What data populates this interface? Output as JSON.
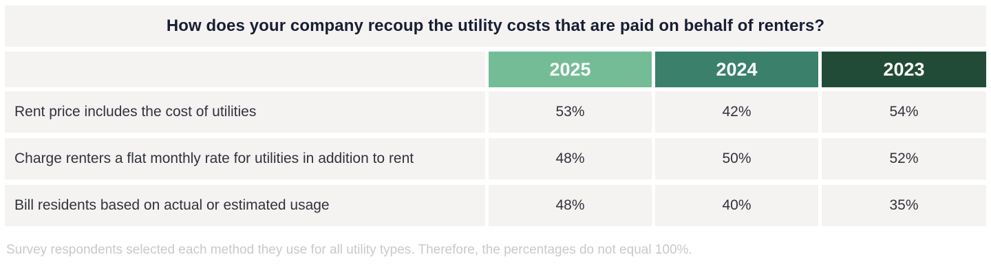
{
  "title": "How does your company recoup the utility costs that are paid on behalf of renters?",
  "table": {
    "year_columns": [
      {
        "label": "2025",
        "color": "#74BC95"
      },
      {
        "label": "2024",
        "color": "#3A806B"
      },
      {
        "label": "2023",
        "color": "#224B37"
      }
    ],
    "rows": [
      {
        "label": "Rent price includes the cost of utilities",
        "values": [
          "53%",
          "42%",
          "54%"
        ]
      },
      {
        "label": "Charge renters a flat monthly rate for utilities in addition to rent",
        "values": [
          "48%",
          "50%",
          "52%"
        ]
      },
      {
        "label": "Bill residents based on actual or estimated usage",
        "values": [
          "48%",
          "40%",
          "35%"
        ]
      }
    ]
  },
  "footnote": "Survey respondents selected each method they use for all utility types. Therefore, the percentages do not equal 100%.",
  "colors": {
    "page_bg": "#FFFFFF",
    "band_bg": "#F4F3F2",
    "title_text": "#191D33",
    "body_text": "#32323C",
    "header_text": "#FFFFFF",
    "footnote_text": "#C9C9C9"
  },
  "chart_data": {
    "type": "table",
    "title": "How does your company recoup the utility costs that are paid on behalf of renters?",
    "categories": [
      "Rent price includes the cost of utilities",
      "Charge renters a flat monthly rate for utilities in addition to rent",
      "Bill residents based on actual or estimated usage"
    ],
    "series": [
      {
        "name": "2025",
        "values": [
          53,
          48,
          48
        ]
      },
      {
        "name": "2024",
        "values": [
          42,
          50,
          40
        ]
      },
      {
        "name": "2023",
        "values": [
          54,
          52,
          35
        ]
      }
    ],
    "value_unit": "%",
    "footnote": "Survey respondents selected each method they use for all utility types. Therefore, the percentages do not equal 100%."
  }
}
